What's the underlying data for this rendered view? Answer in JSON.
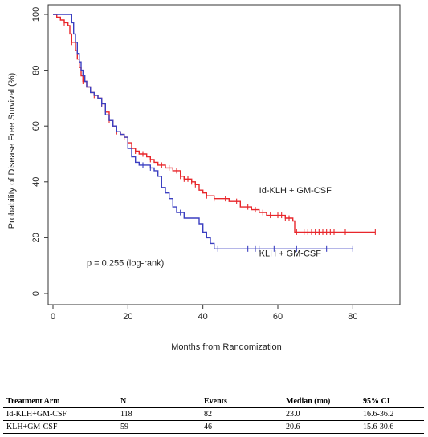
{
  "chart_data": {
    "type": "line",
    "subtype": "kaplan-meier",
    "title": "",
    "xlabel": "Months from Randomization",
    "ylabel": "Probability of Disease Free Survival (%)",
    "xlim": [
      0,
      90
    ],
    "ylim": [
      0,
      100
    ],
    "xticks": [
      0,
      20,
      40,
      60,
      80
    ],
    "yticks": [
      0,
      20,
      40,
      60,
      80,
      100
    ],
    "grid": false,
    "legend": "none",
    "series": [
      {
        "name": "Id-KLH + GM-CSF",
        "color": "#e8262b",
        "label_at": [
          55,
          37
        ],
        "steps": [
          [
            0,
            100
          ],
          [
            1,
            99
          ],
          [
            2,
            98
          ],
          [
            3,
            97
          ],
          [
            4,
            96
          ],
          [
            4.5,
            93
          ],
          [
            5,
            90
          ],
          [
            6,
            87
          ],
          [
            6.5,
            84
          ],
          [
            7,
            81
          ],
          [
            7.5,
            78
          ],
          [
            8,
            76
          ],
          [
            9,
            74
          ],
          [
            10,
            72
          ],
          [
            11,
            71
          ],
          [
            12,
            70
          ],
          [
            13,
            68
          ],
          [
            14,
            65
          ],
          [
            15,
            62
          ],
          [
            16,
            60
          ],
          [
            17,
            58
          ],
          [
            18,
            57
          ],
          [
            19,
            56
          ],
          [
            20,
            54
          ],
          [
            21,
            52
          ],
          [
            22,
            51
          ],
          [
            23,
            50
          ],
          [
            25,
            49
          ],
          [
            26,
            48
          ],
          [
            27,
            47
          ],
          [
            28,
            46
          ],
          [
            30,
            45
          ],
          [
            32,
            44
          ],
          [
            34,
            42
          ],
          [
            35,
            41
          ],
          [
            37,
            40
          ],
          [
            38,
            39
          ],
          [
            39,
            37
          ],
          [
            40,
            36
          ],
          [
            41,
            35
          ],
          [
            43,
            34
          ],
          [
            47,
            33
          ],
          [
            50,
            31
          ],
          [
            53,
            30
          ],
          [
            55,
            29
          ],
          [
            57,
            28
          ],
          [
            62,
            27
          ],
          [
            64,
            26
          ],
          [
            64.5,
            22
          ],
          [
            86,
            22
          ]
        ],
        "censor_x": [
          3,
          5,
          8,
          11,
          13,
          15,
          17,
          19,
          22,
          24,
          26,
          29,
          31,
          33,
          34,
          35,
          36,
          37,
          38,
          41,
          43,
          46,
          49,
          52,
          54,
          56,
          58,
          60,
          61,
          62,
          63,
          65,
          67,
          68,
          69,
          70,
          71,
          72,
          73,
          74,
          75,
          78,
          86
        ]
      },
      {
        "name": "KLH + GM-CSF",
        "color": "#3b3fc1",
        "label_at": [
          55,
          14.5
        ],
        "steps": [
          [
            0,
            100
          ],
          [
            5,
            97
          ],
          [
            5.5,
            93
          ],
          [
            6,
            90
          ],
          [
            6.5,
            86
          ],
          [
            7,
            83
          ],
          [
            7.5,
            80
          ],
          [
            8,
            78
          ],
          [
            8.5,
            76
          ],
          [
            9,
            74
          ],
          [
            10,
            72
          ],
          [
            11,
            71
          ],
          [
            12,
            70
          ],
          [
            13,
            68
          ],
          [
            14,
            64
          ],
          [
            15,
            62
          ],
          [
            16,
            60
          ],
          [
            17,
            58
          ],
          [
            18,
            57
          ],
          [
            19,
            56
          ],
          [
            20,
            52
          ],
          [
            21,
            49
          ],
          [
            22,
            47
          ],
          [
            23,
            46
          ],
          [
            26,
            45
          ],
          [
            27,
            44
          ],
          [
            28,
            42
          ],
          [
            29,
            38
          ],
          [
            30,
            36
          ],
          [
            31,
            34
          ],
          [
            32,
            31
          ],
          [
            33,
            29
          ],
          [
            35,
            27
          ],
          [
            39,
            25
          ],
          [
            40,
            22
          ],
          [
            41,
            20
          ],
          [
            42,
            18
          ],
          [
            43,
            16
          ],
          [
            80,
            16
          ]
        ],
        "censor_x": [
          13,
          24,
          26,
          34,
          44,
          52,
          54,
          55,
          59,
          65,
          73,
          80
        ]
      }
    ],
    "annotations": [
      {
        "text": "p = 0.255 (log-rank)",
        "x": 9,
        "y": 11
      }
    ]
  },
  "table": {
    "headers": [
      "Treatment Arm",
      "N",
      "Events",
      "Median (mo)",
      "95% CI"
    ],
    "rows": [
      [
        "Id-KLH+GM-CSF",
        "118",
        "82",
        "23.0",
        "16.6-36.2"
      ],
      [
        "KLH+GM-CSF",
        "59",
        "46",
        "20.6",
        "15.6-30.6"
      ]
    ]
  }
}
